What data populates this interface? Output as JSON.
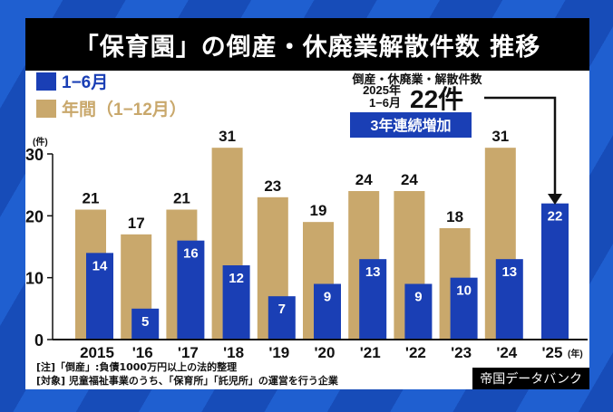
{
  "title": "「保育園」の倒産・休廃業解散件数 推移",
  "legend": [
    {
      "label": "1−6月",
      "color": "#1a3fb5"
    },
    {
      "label": "年間（1−12月）",
      "color": "#c9a86c"
    }
  ],
  "callout": {
    "heading": "倒産・休廃業・解散件数",
    "period_year": "2025年",
    "period_months": "1−6月",
    "value": "22件",
    "badge": "3年連続増加"
  },
  "notes": [
    "[注]「倒産」:負債1000万円以上の法的整理",
    "[対象] 児童福祉事業のうち、「保育所」「託児所」の運営を行う企業"
  ],
  "source": "帝国データバンク",
  "chart_data": {
    "type": "bar",
    "title": "「保育園」の倒産・休廃業解散件数 推移",
    "ylabel": "(件)",
    "xlabel": "(年)",
    "ylim": [
      0,
      30
    ],
    "yticks": [
      0,
      10,
      20,
      30
    ],
    "categories": [
      "2015",
      "'16",
      "'17",
      "'18",
      "'19",
      "'20",
      "'21",
      "'22",
      "'23",
      "'24",
      "'25"
    ],
    "series": [
      {
        "name": "年間（1−12月）",
        "color": "#c9a86c",
        "values": [
          21,
          17,
          21,
          31,
          23,
          19,
          24,
          24,
          18,
          31,
          null
        ]
      },
      {
        "name": "1−6月",
        "color": "#1a3fb5",
        "values": [
          14,
          5,
          16,
          12,
          7,
          9,
          13,
          9,
          10,
          13,
          22
        ]
      }
    ],
    "grid": false,
    "legend_position": "top-left"
  }
}
